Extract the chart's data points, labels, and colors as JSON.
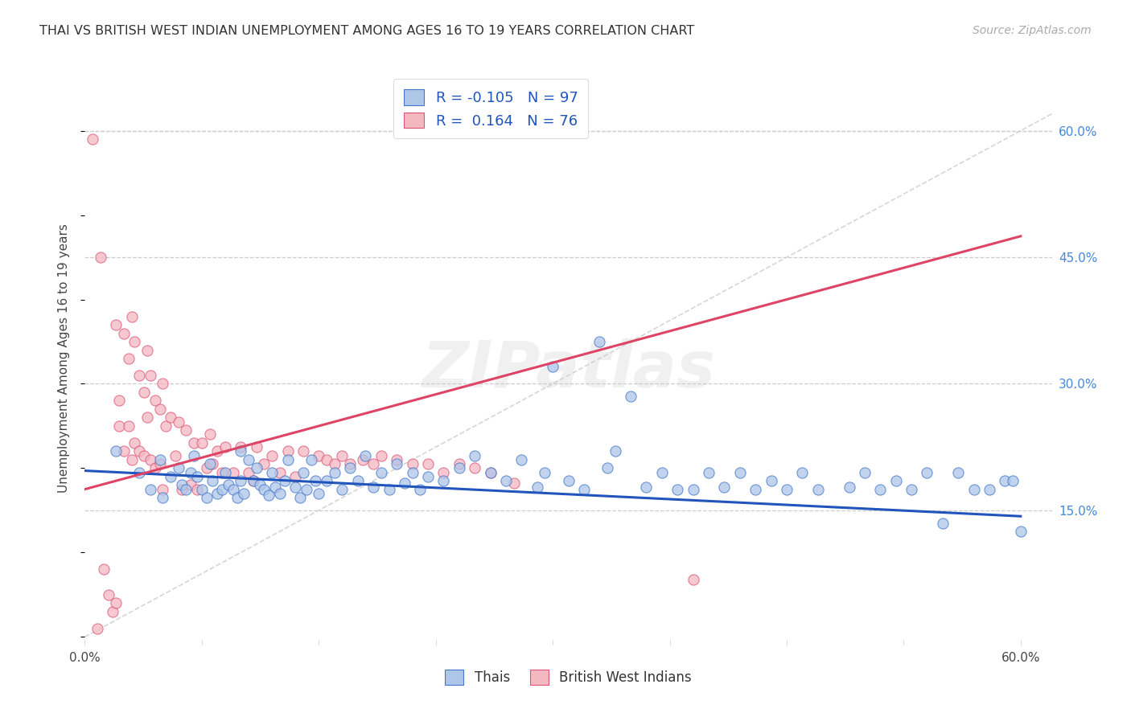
{
  "title": "THAI VS BRITISH WEST INDIAN UNEMPLOYMENT AMONG AGES 16 TO 19 YEARS CORRELATION CHART",
  "source": "Source: ZipAtlas.com",
  "ylabel": "Unemployment Among Ages 16 to 19 years",
  "xlim": [
    0.0,
    0.62
  ],
  "ylim": [
    -0.01,
    0.67
  ],
  "plot_xlim": [
    0.0,
    0.6
  ],
  "plot_ylim": [
    0.0,
    0.63
  ],
  "xtick_positions": [
    0.0,
    0.6
  ],
  "xtick_labels": [
    "0.0%",
    "60.0%"
  ],
  "yticks_right": [
    0.15,
    0.3,
    0.45,
    0.6
  ],
  "ytick_labels_right": [
    "15.0%",
    "30.0%",
    "45.0%",
    "60.0%"
  ],
  "background_color": "#ffffff",
  "grid_color": "#cccccc",
  "thai_color": "#aec6e8",
  "bwi_color": "#f4b8c1",
  "thai_edge_color": "#4477cc",
  "bwi_edge_color": "#dd5577",
  "thai_line_color": "#2255bb",
  "bwi_line_color": "#dd4466",
  "diagonal_color": "#cccccc",
  "R_thai": -0.105,
  "N_thai": 97,
  "R_bwi": 0.164,
  "N_bwi": 76,
  "legend_R_color": "#2255bb",
  "watermark": "ZIPatlas",
  "thai_scatter_x": [
    0.02,
    0.035,
    0.042,
    0.048,
    0.05,
    0.055,
    0.06,
    0.062,
    0.065,
    0.068,
    0.07,
    0.072,
    0.075,
    0.078,
    0.08,
    0.082,
    0.085,
    0.088,
    0.09,
    0.092,
    0.095,
    0.098,
    0.1,
    0.1,
    0.102,
    0.105,
    0.108,
    0.11,
    0.112,
    0.115,
    0.118,
    0.12,
    0.122,
    0.125,
    0.128,
    0.13,
    0.135,
    0.138,
    0.14,
    0.142,
    0.145,
    0.148,
    0.15,
    0.155,
    0.16,
    0.165,
    0.17,
    0.175,
    0.18,
    0.185,
    0.19,
    0.195,
    0.2,
    0.205,
    0.21,
    0.215,
    0.22,
    0.23,
    0.24,
    0.25,
    0.26,
    0.27,
    0.28,
    0.29,
    0.295,
    0.3,
    0.31,
    0.32,
    0.33,
    0.335,
    0.34,
    0.35,
    0.36,
    0.37,
    0.38,
    0.39,
    0.4,
    0.41,
    0.42,
    0.43,
    0.44,
    0.45,
    0.46,
    0.47,
    0.49,
    0.5,
    0.51,
    0.52,
    0.53,
    0.54,
    0.55,
    0.56,
    0.57,
    0.58,
    0.59,
    0.595,
    0.6
  ],
  "thai_scatter_y": [
    0.22,
    0.195,
    0.175,
    0.21,
    0.165,
    0.19,
    0.2,
    0.18,
    0.175,
    0.195,
    0.215,
    0.19,
    0.175,
    0.165,
    0.205,
    0.185,
    0.17,
    0.175,
    0.195,
    0.18,
    0.175,
    0.165,
    0.22,
    0.185,
    0.17,
    0.21,
    0.185,
    0.2,
    0.18,
    0.175,
    0.168,
    0.195,
    0.178,
    0.17,
    0.185,
    0.21,
    0.178,
    0.165,
    0.195,
    0.175,
    0.21,
    0.185,
    0.17,
    0.185,
    0.195,
    0.175,
    0.2,
    0.185,
    0.215,
    0.178,
    0.195,
    0.175,
    0.205,
    0.182,
    0.195,
    0.175,
    0.19,
    0.185,
    0.2,
    0.215,
    0.195,
    0.185,
    0.21,
    0.178,
    0.195,
    0.32,
    0.185,
    0.175,
    0.35,
    0.2,
    0.22,
    0.285,
    0.178,
    0.195,
    0.175,
    0.175,
    0.195,
    0.178,
    0.195,
    0.175,
    0.185,
    0.175,
    0.195,
    0.175,
    0.178,
    0.195,
    0.175,
    0.185,
    0.175,
    0.195,
    0.135,
    0.195,
    0.175,
    0.175,
    0.185,
    0.185,
    0.125
  ],
  "bwi_scatter_x": [
    0.005,
    0.008,
    0.01,
    0.012,
    0.015,
    0.018,
    0.02,
    0.02,
    0.022,
    0.022,
    0.025,
    0.025,
    0.028,
    0.028,
    0.03,
    0.03,
    0.032,
    0.032,
    0.035,
    0.035,
    0.038,
    0.038,
    0.04,
    0.04,
    0.042,
    0.042,
    0.045,
    0.045,
    0.048,
    0.048,
    0.05,
    0.05,
    0.052,
    0.055,
    0.058,
    0.06,
    0.062,
    0.065,
    0.068,
    0.07,
    0.072,
    0.075,
    0.078,
    0.08,
    0.082,
    0.085,
    0.088,
    0.09,
    0.095,
    0.1,
    0.105,
    0.108,
    0.11,
    0.115,
    0.12,
    0.125,
    0.13,
    0.135,
    0.14,
    0.15,
    0.155,
    0.16,
    0.165,
    0.17,
    0.178,
    0.185,
    0.19,
    0.2,
    0.21,
    0.22,
    0.23,
    0.24,
    0.25,
    0.26,
    0.275,
    0.39
  ],
  "bwi_scatter_y": [
    0.59,
    0.01,
    0.45,
    0.08,
    0.05,
    0.03,
    0.37,
    0.04,
    0.28,
    0.25,
    0.36,
    0.22,
    0.33,
    0.25,
    0.38,
    0.21,
    0.35,
    0.23,
    0.31,
    0.22,
    0.29,
    0.215,
    0.34,
    0.26,
    0.31,
    0.21,
    0.28,
    0.2,
    0.27,
    0.205,
    0.3,
    0.175,
    0.25,
    0.26,
    0.215,
    0.255,
    0.175,
    0.245,
    0.18,
    0.23,
    0.175,
    0.23,
    0.2,
    0.24,
    0.205,
    0.22,
    0.195,
    0.225,
    0.195,
    0.225,
    0.195,
    0.185,
    0.225,
    0.205,
    0.215,
    0.195,
    0.22,
    0.19,
    0.22,
    0.215,
    0.21,
    0.205,
    0.215,
    0.205,
    0.21,
    0.205,
    0.215,
    0.21,
    0.205,
    0.205,
    0.195,
    0.205,
    0.2,
    0.195,
    0.182,
    0.068
  ]
}
